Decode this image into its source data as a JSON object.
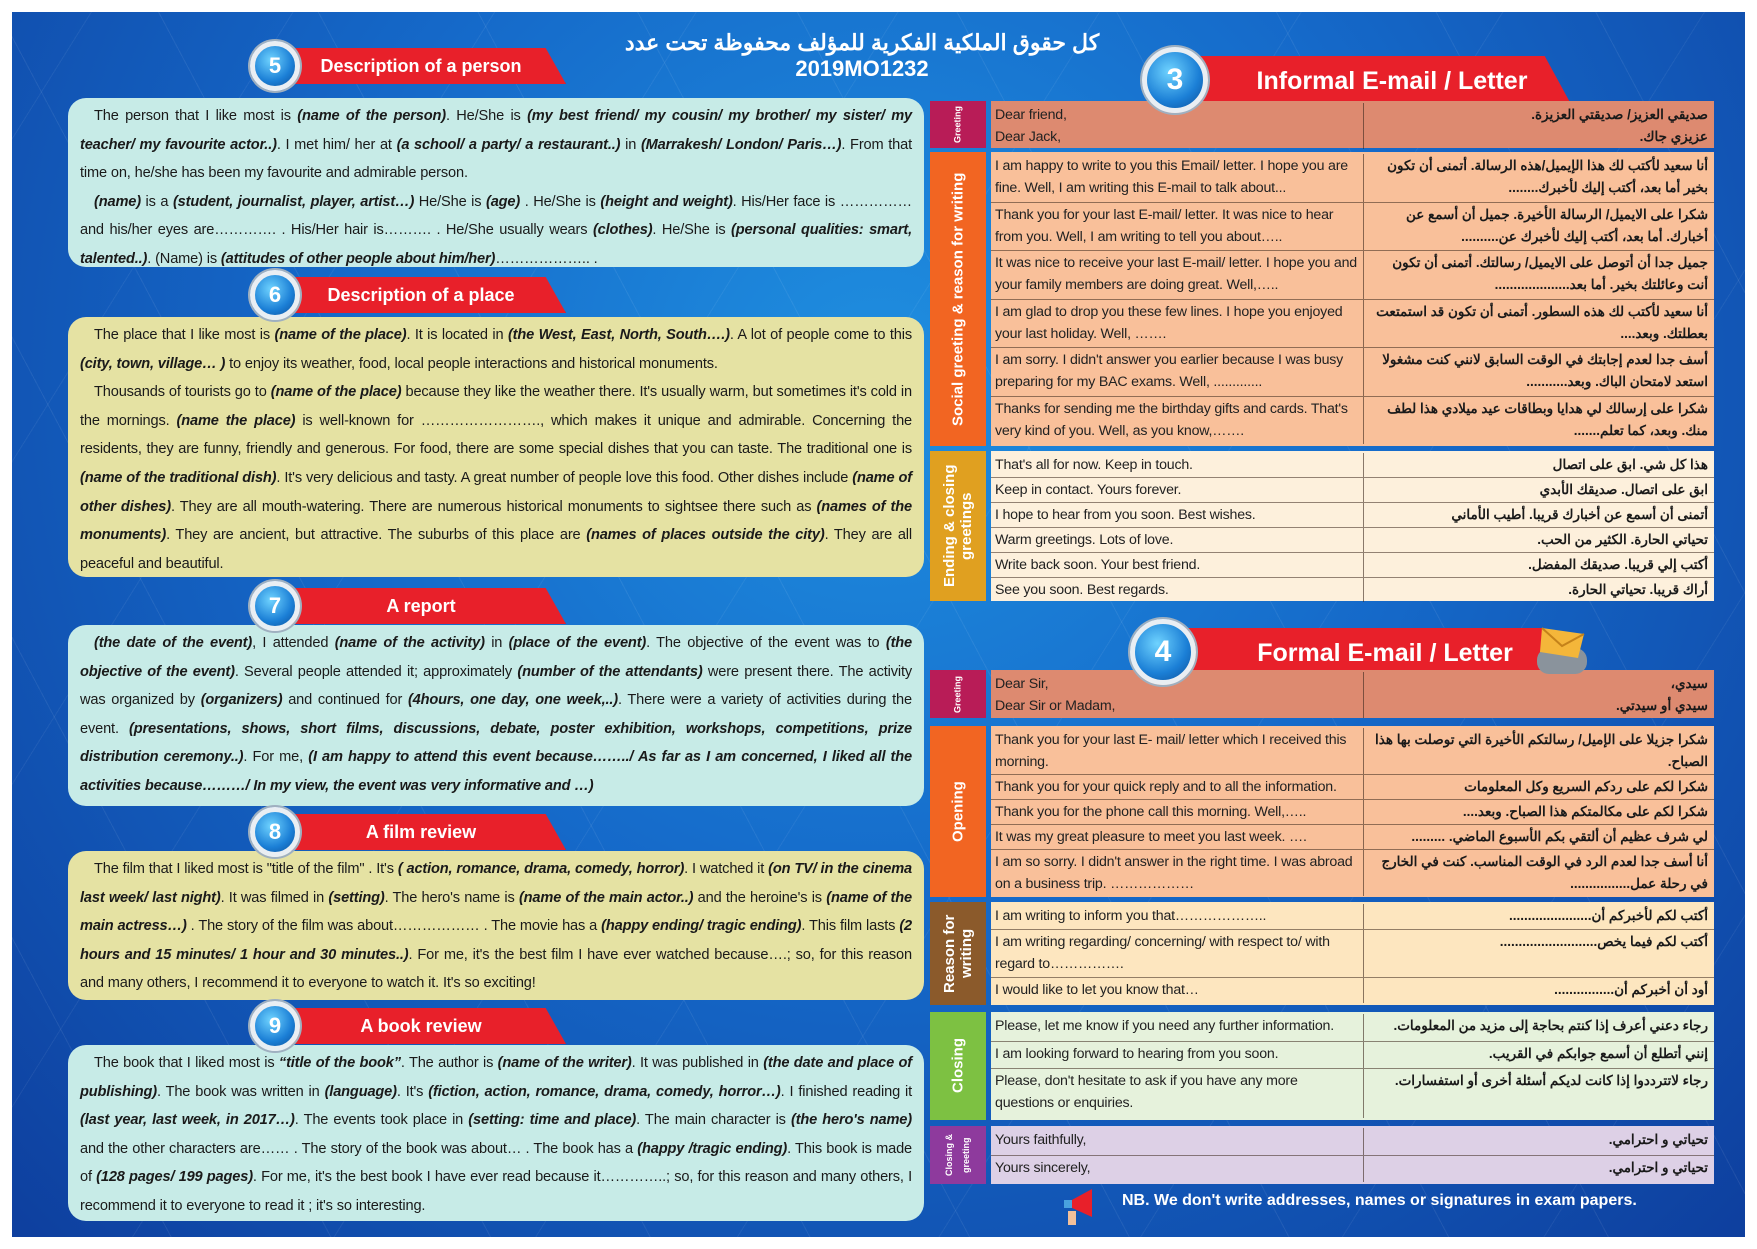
{
  "header": {
    "copyright": "كل حقوق الملكية الفكرية للمؤلف محفوظة تحت عدد",
    "registration": "2019MO1232"
  },
  "left_sections": [
    {
      "number": "5",
      "title": "Description of a person",
      "paragraphs": [
        [
          {
            "t": "The person that I like most is  "
          },
          {
            "t": "(name of the person)",
            "b": 1
          },
          {
            "t": ". He/She is "
          },
          {
            "t": "(my best friend/ my cousin/ my brother/ my sister/ my teacher/ my favourite actor..)",
            "b": 1
          },
          {
            "t": ". I met him/ her at "
          },
          {
            "t": "(a school/ a party/ a restaurant..)",
            "b": 1
          },
          {
            "t": " in "
          },
          {
            "t": "(Marrakesh/ London/ Paris…)",
            "b": 1
          },
          {
            "t": ". From that time on, he/she has been my favourite and admirable person."
          }
        ],
        [
          {
            "t": "(name)",
            "b": 1
          },
          {
            "t": " is a "
          },
          {
            "t": "(student, journalist, player, artist…)",
            "b": 1
          },
          {
            "t": " He/She is "
          },
          {
            "t": "(age)",
            "b": 1
          },
          {
            "t": " . He/She is "
          },
          {
            "t": "(height and weight)",
            "b": 1
          },
          {
            "t": ". His/Her face is ……………and his/her eyes are…………. . His/Her hair is………. . He/She usually wears "
          },
          {
            "t": "(clothes)",
            "b": 1
          },
          {
            "t": ". He/She is "
          },
          {
            "t": "(personal qualities: smart, talented..)",
            "b": 1
          },
          {
            "t": ". (Name) is "
          },
          {
            "t": "(attitudes of other people about him/her)",
            "b": 1
          },
          {
            "t": "……………….. ."
          }
        ]
      ]
    },
    {
      "number": "6",
      "title": "Description of a place",
      "paragraphs": [
        [
          {
            "t": "The place that I like most is "
          },
          {
            "t": "(name of the place)",
            "b": 1
          },
          {
            "t": ". It is located in "
          },
          {
            "t": "(the West, East, North, South….)",
            "b": 1
          },
          {
            "t": ". A lot of people come to this "
          },
          {
            "t": "(city, town, village… )",
            "b": 1
          },
          {
            "t": " to enjoy its weather, food, local people interactions  and historical monuments."
          }
        ],
        [
          {
            "t": "Thousands of tourists go to "
          },
          {
            "t": "(name of the place)",
            "b": 1
          },
          {
            "t": " because they like the weather there. It's usually warm, but sometimes it's cold in the mornings. "
          },
          {
            "t": "(name the place)",
            "b": 1
          },
          {
            "t": " is well-known for ……………………., which makes it unique and admirable. Concerning the residents, they are funny, friendly and generous. For food, there are some special dishes that you can taste. The traditional one is "
          },
          {
            "t": "(name of the traditional dish)",
            "b": 1
          },
          {
            "t": ". It's very delicious and tasty. A great number of people love this food. Other dishes include "
          },
          {
            "t": "(name of other dishes)",
            "b": 1
          },
          {
            "t": ". They are all mouth-watering. There are numerous historical monuments to sightsee there such as "
          },
          {
            "t": "(names of the monuments)",
            "b": 1
          },
          {
            "t": ". They are ancient, but attractive. The suburbs of this place are "
          },
          {
            "t": "(names of places outside the city)",
            "b": 1
          },
          {
            "t": ". They are all peaceful and beautiful."
          }
        ]
      ]
    },
    {
      "number": "7",
      "title": "A report",
      "paragraphs": [
        [
          {
            "t": "(the date of the event)",
            "b": 1
          },
          {
            "t": ", I attended "
          },
          {
            "t": "(name of the activity)",
            "b": 1
          },
          {
            "t": " in "
          },
          {
            "t": "(place of the event)",
            "b": 1
          },
          {
            "t": ". The objective of the event was to "
          },
          {
            "t": "(the objective of the event)",
            "b": 1
          },
          {
            "t": ". Several people attended it; approximately "
          },
          {
            "t": "(number of the attendants)",
            "b": 1
          },
          {
            "t": " were present there. The activity was organized by "
          },
          {
            "t": "(organizers)",
            "b": 1
          },
          {
            "t": " and continued for "
          },
          {
            "t": "(4hours, one day, one week,..)",
            "b": 1
          },
          {
            "t": ". There were a variety of activities during the event. "
          },
          {
            "t": "(presentations, shows, short films, discussions, debate, poster exhibition, workshops, competitions, prize distribution ceremony..)",
            "b": 1
          },
          {
            "t": ". For me, "
          },
          {
            "t": "(I am happy to attend this event because……../ As far as I am concerned, I liked all the activities because………/ In my view, the event was very informative and …)",
            "b": 1
          }
        ]
      ]
    },
    {
      "number": "8",
      "title": "A film review",
      "paragraphs": [
        [
          {
            "t": "The film that I liked most is \"title of the film\" . It's "
          },
          {
            "t": "( action, romance, drama, comedy, horror)",
            "b": 1
          },
          {
            "t": ".  I watched it "
          },
          {
            "t": "(on TV/ in the cinema last week/ last night)",
            "b": 1
          },
          {
            "t": ". It was filmed in "
          },
          {
            "t": "(setting)",
            "b": 1
          },
          {
            "t": ". The hero's name is "
          },
          {
            "t": "(name of the main actor..)",
            "b": 1
          },
          {
            "t": " and the heroine's is "
          },
          {
            "t": "(name of the main actress…)",
            "b": 1
          },
          {
            "t": " . The story of the film was about……………… . The movie has a "
          },
          {
            "t": "(happy ending/ tragic ending)",
            "b": 1
          },
          {
            "t": ". This film lasts "
          },
          {
            "t": "(2 hours and 15 minutes/ 1 hour and 30 minutes..)",
            "b": 1
          },
          {
            "t": ". For me, it's the best film I have ever watched because….; so, for this reason and many others,  I recommend it to everyone to watch it. It's so exciting!"
          }
        ]
      ]
    },
    {
      "number": "9",
      "title": "A book review",
      "paragraphs": [
        [
          {
            "t": "The book that I liked most is "
          },
          {
            "t": "“title of the book”",
            "b": 1
          },
          {
            "t": ". The author is "
          },
          {
            "t": "(name of the writer)",
            "b": 1
          },
          {
            "t": ". It was published in "
          },
          {
            "t": "(the date and place of publishing)",
            "b": 1
          },
          {
            "t": ".  The book was written in "
          },
          {
            "t": "(language)",
            "b": 1
          },
          {
            "t": ". It's "
          },
          {
            "t": "(fiction, action, romance, drama, comedy, horror…)",
            "b": 1
          },
          {
            "t": ".  I finished reading it "
          },
          {
            "t": "(last year, last week, in 2017…)",
            "b": 1
          },
          {
            "t": ". The events took place in "
          },
          {
            "t": "(setting: time and place)",
            "b": 1
          },
          {
            "t": ". The main character is "
          },
          {
            "t": "(the hero's name)",
            "b": 1
          },
          {
            "t": " and the other characters are…… . The story of the book was about… . The book has a "
          },
          {
            "t": "(happy /tragic ending)",
            "b": 1
          },
          {
            "t": ". This book is made of "
          },
          {
            "t": "(128 pages/ 199 pages)",
            "b": 1
          },
          {
            "t": ".  For me, it's the best book I have ever read because it…………..; so, for this reason and many others, I recommend it to everyone to read it ; it's so interesting."
          }
        ]
      ]
    }
  ],
  "informal": {
    "number": "3",
    "title": "Informal E-mail / Letter",
    "sections": [
      {
        "label": "Greeting",
        "color": "#b81c57",
        "row_bg": "#dd8a70",
        "rows": [
          {
            "en": "Dear friend,\nDear Jack,",
            "ar": "صديقي العزيز/ صديقتي العزيزة.\nعزيزي جاك."
          }
        ]
      },
      {
        "label": "Social greeting & reason for writing",
        "color": "#f26522",
        "row_bg": "#f9c09a",
        "rows": [
          {
            "en": "I am happy to write to you this Email/ letter. I hope you are fine. Well, I am writing this E-mail to talk about...",
            "ar": "أنا سعيد لأكتب لك هذا الإيميل/هذه الرسالة. أتمنى أن تكون بخير أما بعد، أكتب إليك لأخبرك........"
          },
          {
            "en": "Thank you for your last E-mail/ letter. It was nice to hear from you. Well, I am writing to tell you about…..",
            "ar": "شكرا على الايميل/ الرسالة الأخيرة. جميل أن أسمع عن أخبارك. أما بعد، أكتب إليك لأخبرك عن.........."
          },
          {
            "en": "It was nice to receive your last E-mail/ letter. I hope you and your family members are doing great. Well,…..",
            "ar": "جميل جدا أن أتوصل على الايميل/ رسالتك. أتمنى أن تكون أنت وعائلتك بخير. أما بعد...................."
          },
          {
            "en": "I am glad to drop you these few lines. I hope you enjoyed your last holiday. Well, …….",
            "ar": "أنا سعيد لأكتب لك هذه السطور. أتمنى أن تكون قد استمتعت بعطلتك. وبعد...."
          },
          {
            "en": "I am sorry. I didn't answer you earlier because I was busy preparing for my BAC exams. Well, .............",
            "ar": "أسف جدا لعدم إجابتك في الوقت السابق لانني كنت مشغولا استعد لامتحان الباك. وبعد..........."
          },
          {
            "en": "Thanks for sending me the birthday gifts and cards. That's very kind of you. Well, as you know,…….",
            "ar": "شكرا على إرسالك لي هدايا وبطاقات عيد ميلادي هذا لطف منك. وبعد، كما تعلم......."
          }
        ]
      },
      {
        "label": "Ending & closing greetings",
        "color": "#e0a020",
        "row_bg": "#fdf0dc",
        "rows": [
          {
            "en": "That's all for now. Keep in touch.",
            "ar": "هذا كل شي. ابق على اتصال"
          },
          {
            "en": "Keep in contact. Yours forever.",
            "ar": "ابق على اتصال. صديقك الأبدي"
          },
          {
            "en": "I hope to hear from you soon. Best wishes.",
            "ar": "أتمنى أن أسمع عن أخبارك قريبا. أطيب الأماني"
          },
          {
            "en": "Warm greetings. Lots of love.",
            "ar": "تحياتي الحارة. الكثير من الحب."
          },
          {
            "en": "Write back soon. Your best friend.",
            "ar": "أكتب إلي قريبا. صديقك المفضل."
          },
          {
            "en": "See you soon. Best regards.",
            "ar": "أراك قريبا. تحياتي الحارة."
          }
        ]
      }
    ]
  },
  "formal": {
    "number": "4",
    "title": "Formal E-mail / Letter",
    "sections": [
      {
        "label": "Greeting",
        "color": "#b81c57",
        "row_bg": "#dd8a70",
        "rows": [
          {
            "en": "Dear Sir,\nDear Sir or Madam,",
            "ar": "سيدي،\nسيدي أو سيدتي."
          }
        ]
      },
      {
        "label": "Opening",
        "color": "#f26522",
        "row_bg": "#f9c09a",
        "rows": [
          {
            "en": "Thank you for your last E- mail/ letter which I received this morning.",
            "ar": "شكرا جزيلا على الإميل/ رسالتكم الأخيرة التي توصلت بها هذا الصباح."
          },
          {
            "en": "Thank you for your quick reply and to all the information.",
            "ar": "شكرا لكم على ردكم السريع وكل المعلومات"
          },
          {
            "en": "Thank you for the phone call this morning. Well,…..",
            "ar": "شكرا لكم على مكالمتكم هذا الصباح. وبعد...."
          },
          {
            "en": "It was my great pleasure to meet you last week. ….",
            "ar": "لي شرف عظيم أن ألتقي بكم الأسبوع الماضي. ........."
          },
          {
            "en": "I am so sorry. I didn't answer in the right time. I was abroad on a business trip. ………………",
            "ar": "أنا أسف جدا لعدم الرد في الوقت المناسب. كنت في الخارج في رحلة عمل................"
          }
        ]
      },
      {
        "label": "Reason for writing",
        "color": "#8b5a2b",
        "row_bg": "#fde6bf",
        "rows": [
          {
            "en": "I am writing to inform you that………………..",
            "ar": "أكتب لكم لأخبركم أن......................"
          },
          {
            "en": "I am writing regarding/ concerning/ with respect to/ with regard to…………….",
            "ar": "أكتب لكم فيما يخص.........................."
          },
          {
            "en": "I would like to let you know that…",
            "ar": "أود أن أخبركم أن................"
          }
        ]
      },
      {
        "label": "Closing",
        "color": "#7dc142",
        "row_bg": "#e6f2dc",
        "rows": [
          {
            "en": "Please, let me know if you need any further information.",
            "ar": "رجاء دعني أعرف إذا كنتم بحاجة إلى مزيد من المعلومات."
          },
          {
            "en": "I am looking forward to hearing from you soon.",
            "ar": "إنني أتطلع أن أسمع جوابكم في القريب."
          },
          {
            "en": "Please, don't hesitate to ask if you have any more questions or enquiries.",
            "ar": "رجاء لاتترددوا إذا كانت لديكم أسئلة أخرى أو استفسارات."
          }
        ]
      },
      {
        "label": "Closing & greeting",
        "color": "#8e3a9d",
        "row_bg": "#ddd0e6",
        "rows": [
          {
            "en": "Yours faithfully,",
            "ar": "تحياتي و احترامي."
          },
          {
            "en": "Yours sincerely,",
            "ar": "تحياتي و احترامي."
          }
        ]
      }
    ]
  },
  "note": "NB. We don't write addresses, names or signatures in exam papers.",
  "icons": {
    "megaphone": "megaphone-icon",
    "mailbox": "mailbox-icon"
  }
}
